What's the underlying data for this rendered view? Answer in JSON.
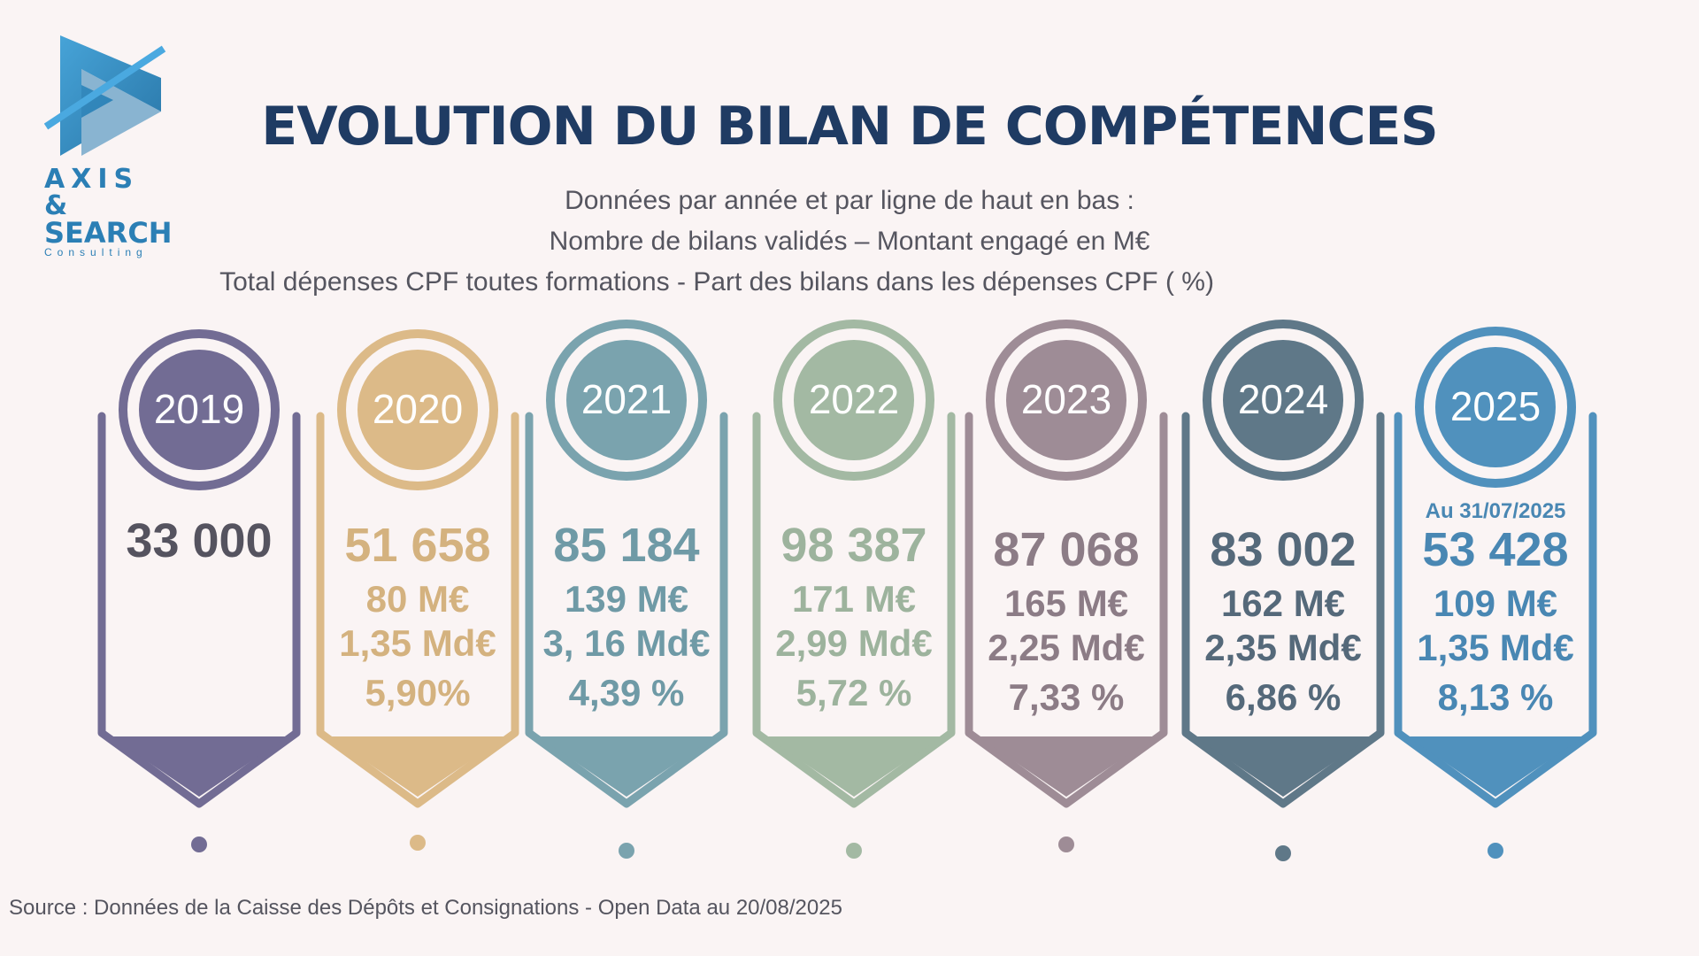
{
  "logo": {
    "line1": "AXIS &",
    "line2": "SEARCH",
    "line3": "Consulting",
    "color": "#2b7fb5"
  },
  "title": "EVOLUTION DU BILAN DE COMPÉTENCES",
  "subtitle": {
    "line1": "Données par année et par ligne de haut en bas :",
    "line2": "Nombre de bilans validés – Montant engagé en M€",
    "line3": "Total dépenses CPF toutes formations  - Part des bilans dans les dépenses CPF ( %)"
  },
  "years": [
    {
      "year": "2019",
      "color": "#726c94",
      "text_color": "#55535f",
      "bilans": "33 000",
      "montant": "",
      "total": "",
      "part": ""
    },
    {
      "year": "2020",
      "color": "#dcba88",
      "text_color": "#d4b27f",
      "bilans": "51 658",
      "montant": "80 M€",
      "total": "1,35 Md€",
      "part": "5,90%"
    },
    {
      "year": "2021",
      "color": "#7aa3ae",
      "text_color": "#6f9aa6",
      "bilans": "85 184",
      "montant": "139 M€",
      "total": "3, 16 Md€",
      "part": "4,39 %"
    },
    {
      "year": "2022",
      "color": "#a3b9a3",
      "text_color": "#9db39d",
      "bilans": "98 387",
      "montant": "171 M€",
      "total": "2,99 Md€",
      "part": "5,72 %"
    },
    {
      "year": "2023",
      "color": "#9e8c96",
      "text_color": "#8c7c86",
      "bilans": "87 068",
      "montant": "165 M€",
      "total": "2,25 Md€",
      "part": "7,33 %"
    },
    {
      "year": "2024",
      "color": "#5f7888",
      "text_color": "#55697a",
      "bilans": "83 002",
      "montant": "162 M€",
      "total": "2,35 Md€",
      "part": "6,86 %"
    },
    {
      "year": "2025",
      "color": "#5091bd",
      "text_color": "#4987b3",
      "note": "Au 31/07/2025",
      "bilans": "53 428",
      "montant": "109 M€",
      "total": "1,35 Md€",
      "part": "8,13 %"
    }
  ],
  "source": "Source : Données de la Caisse des Dépôts et Consignations - Open Data au 20/08/2025"
}
